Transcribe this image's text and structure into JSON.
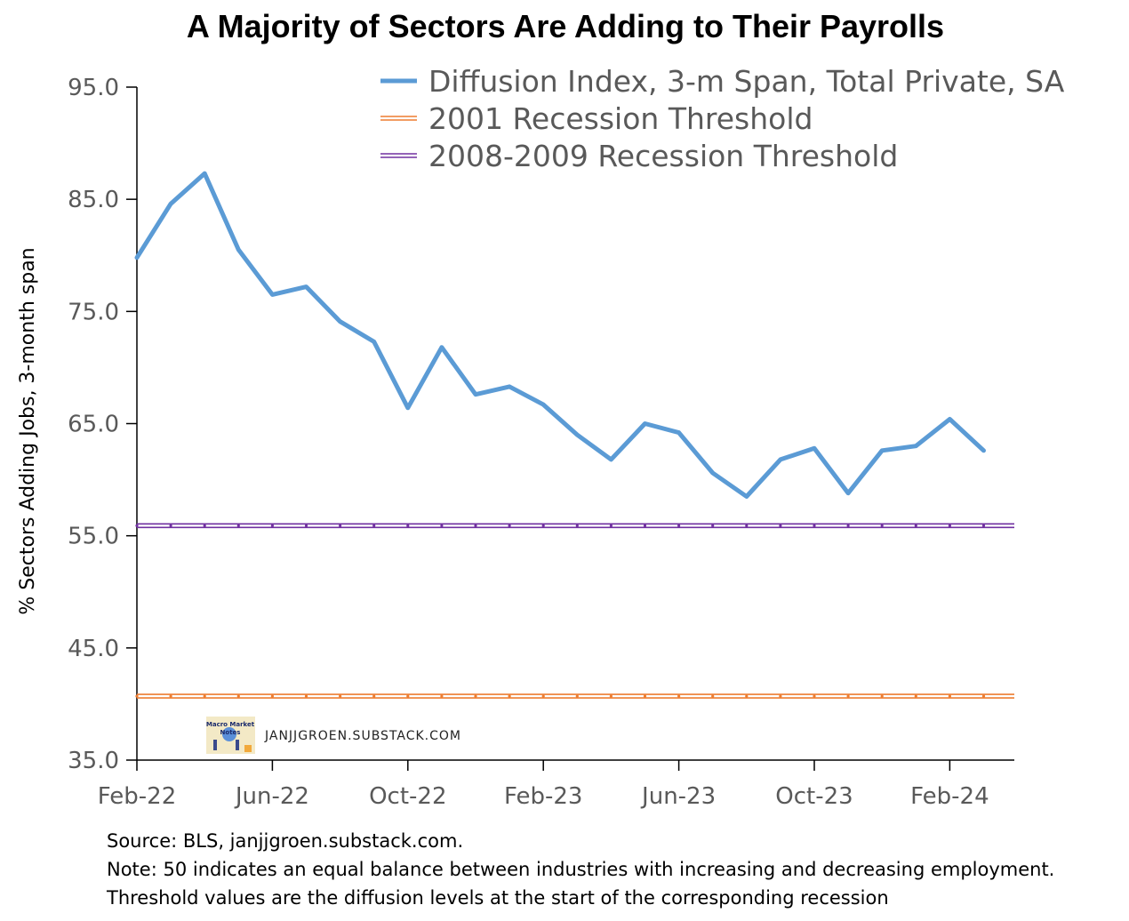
{
  "chart_data": {
    "type": "line",
    "title": "A Majority of Sectors Are Adding to Their Payrolls",
    "ylabel": "% Sectors Adding Jobs, 3-month span",
    "xlabel": "",
    "ylim": [
      35,
      95
    ],
    "yticks": [
      "95.0",
      "85.0",
      "75.0",
      "65.0",
      "55.0",
      "45.0",
      "35.0"
    ],
    "ytick_values": [
      95,
      85,
      75,
      65,
      55,
      45,
      35
    ],
    "xtick_labels": [
      "Feb-22",
      "Jun-22",
      "Oct-22",
      "Feb-23",
      "Jun-23",
      "Oct-23",
      "Feb-24"
    ],
    "xtick_indices": [
      0,
      4,
      8,
      12,
      16,
      20,
      24
    ],
    "grid": false,
    "legend_position": "top-right",
    "series": [
      {
        "name": "Diffusion Index, 3-m Span, Total Private, SA",
        "style": "line",
        "color": "#5b9bd5",
        "x": [
          "Feb-22",
          "Mar-22",
          "Apr-22",
          "May-22",
          "Jun-22",
          "Jul-22",
          "Aug-22",
          "Sep-22",
          "Oct-22",
          "Nov-22",
          "Dec-22",
          "Jan-23",
          "Feb-23",
          "Mar-23",
          "Apr-23",
          "May-23",
          "Jun-23",
          "Jul-23",
          "Aug-23",
          "Sep-23",
          "Oct-23",
          "Nov-23",
          "Dec-23",
          "Jan-24",
          "Feb-24",
          "Mar-24"
        ],
        "values": [
          79.8,
          84.6,
          87.3,
          80.5,
          76.5,
          77.2,
          74.1,
          72.3,
          66.4,
          71.8,
          67.6,
          68.3,
          66.7,
          64.0,
          61.8,
          65.0,
          64.2,
          60.6,
          58.5,
          61.8,
          62.8,
          58.8,
          62.6,
          63.0,
          65.4,
          62.6
        ]
      },
      {
        "name": "2001 Recession Threshold",
        "style": "double-line",
        "color": "#ed7d31",
        "constant": 40.7
      },
      {
        "name": "2008-2009 Recession Threshold",
        "style": "double-line",
        "color": "#7030a0",
        "constant": 55.9
      }
    ]
  },
  "watermark": {
    "logo_text_1": "Macro Market",
    "logo_text_2": "Notes",
    "site": "JANJJGROEN.SUBSTACK.COM"
  },
  "notes": {
    "source": "Source: BLS, janjjgroen.substack.com.",
    "note": "Note: 50 indicates an equal balance between industries with increasing and decreasing employment.",
    "threshold": "Threshold values are the diffusion levels at the start of the corresponding recession"
  }
}
